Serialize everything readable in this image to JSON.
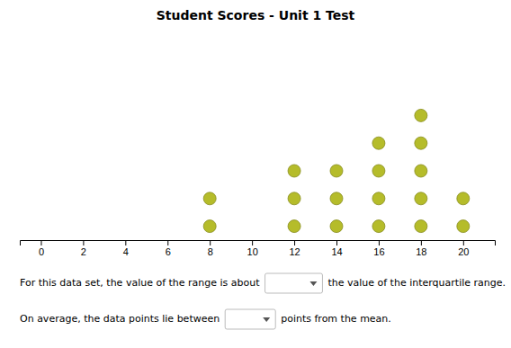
{
  "chart_data": {
    "type": "dot",
    "title": "Student Scores - Unit 1 Test",
    "x": [
      8,
      12,
      14,
      16,
      18,
      20
    ],
    "values": [
      2,
      3,
      3,
      4,
      5,
      2
    ],
    "xlim": [
      -1,
      21.5
    ],
    "xticks": [
      0,
      2,
      4,
      6,
      8,
      10,
      12,
      14,
      16,
      18,
      20
    ],
    "ylim": [
      0.5,
      8
    ],
    "tick_labels": "x",
    "color": "#b5bc2a",
    "annotations": [
      "For this data set, the value of the range is about",
      "the value of the interquartile range.",
      "On average, the data points lie between",
      "points from the mean."
    ]
  }
}
